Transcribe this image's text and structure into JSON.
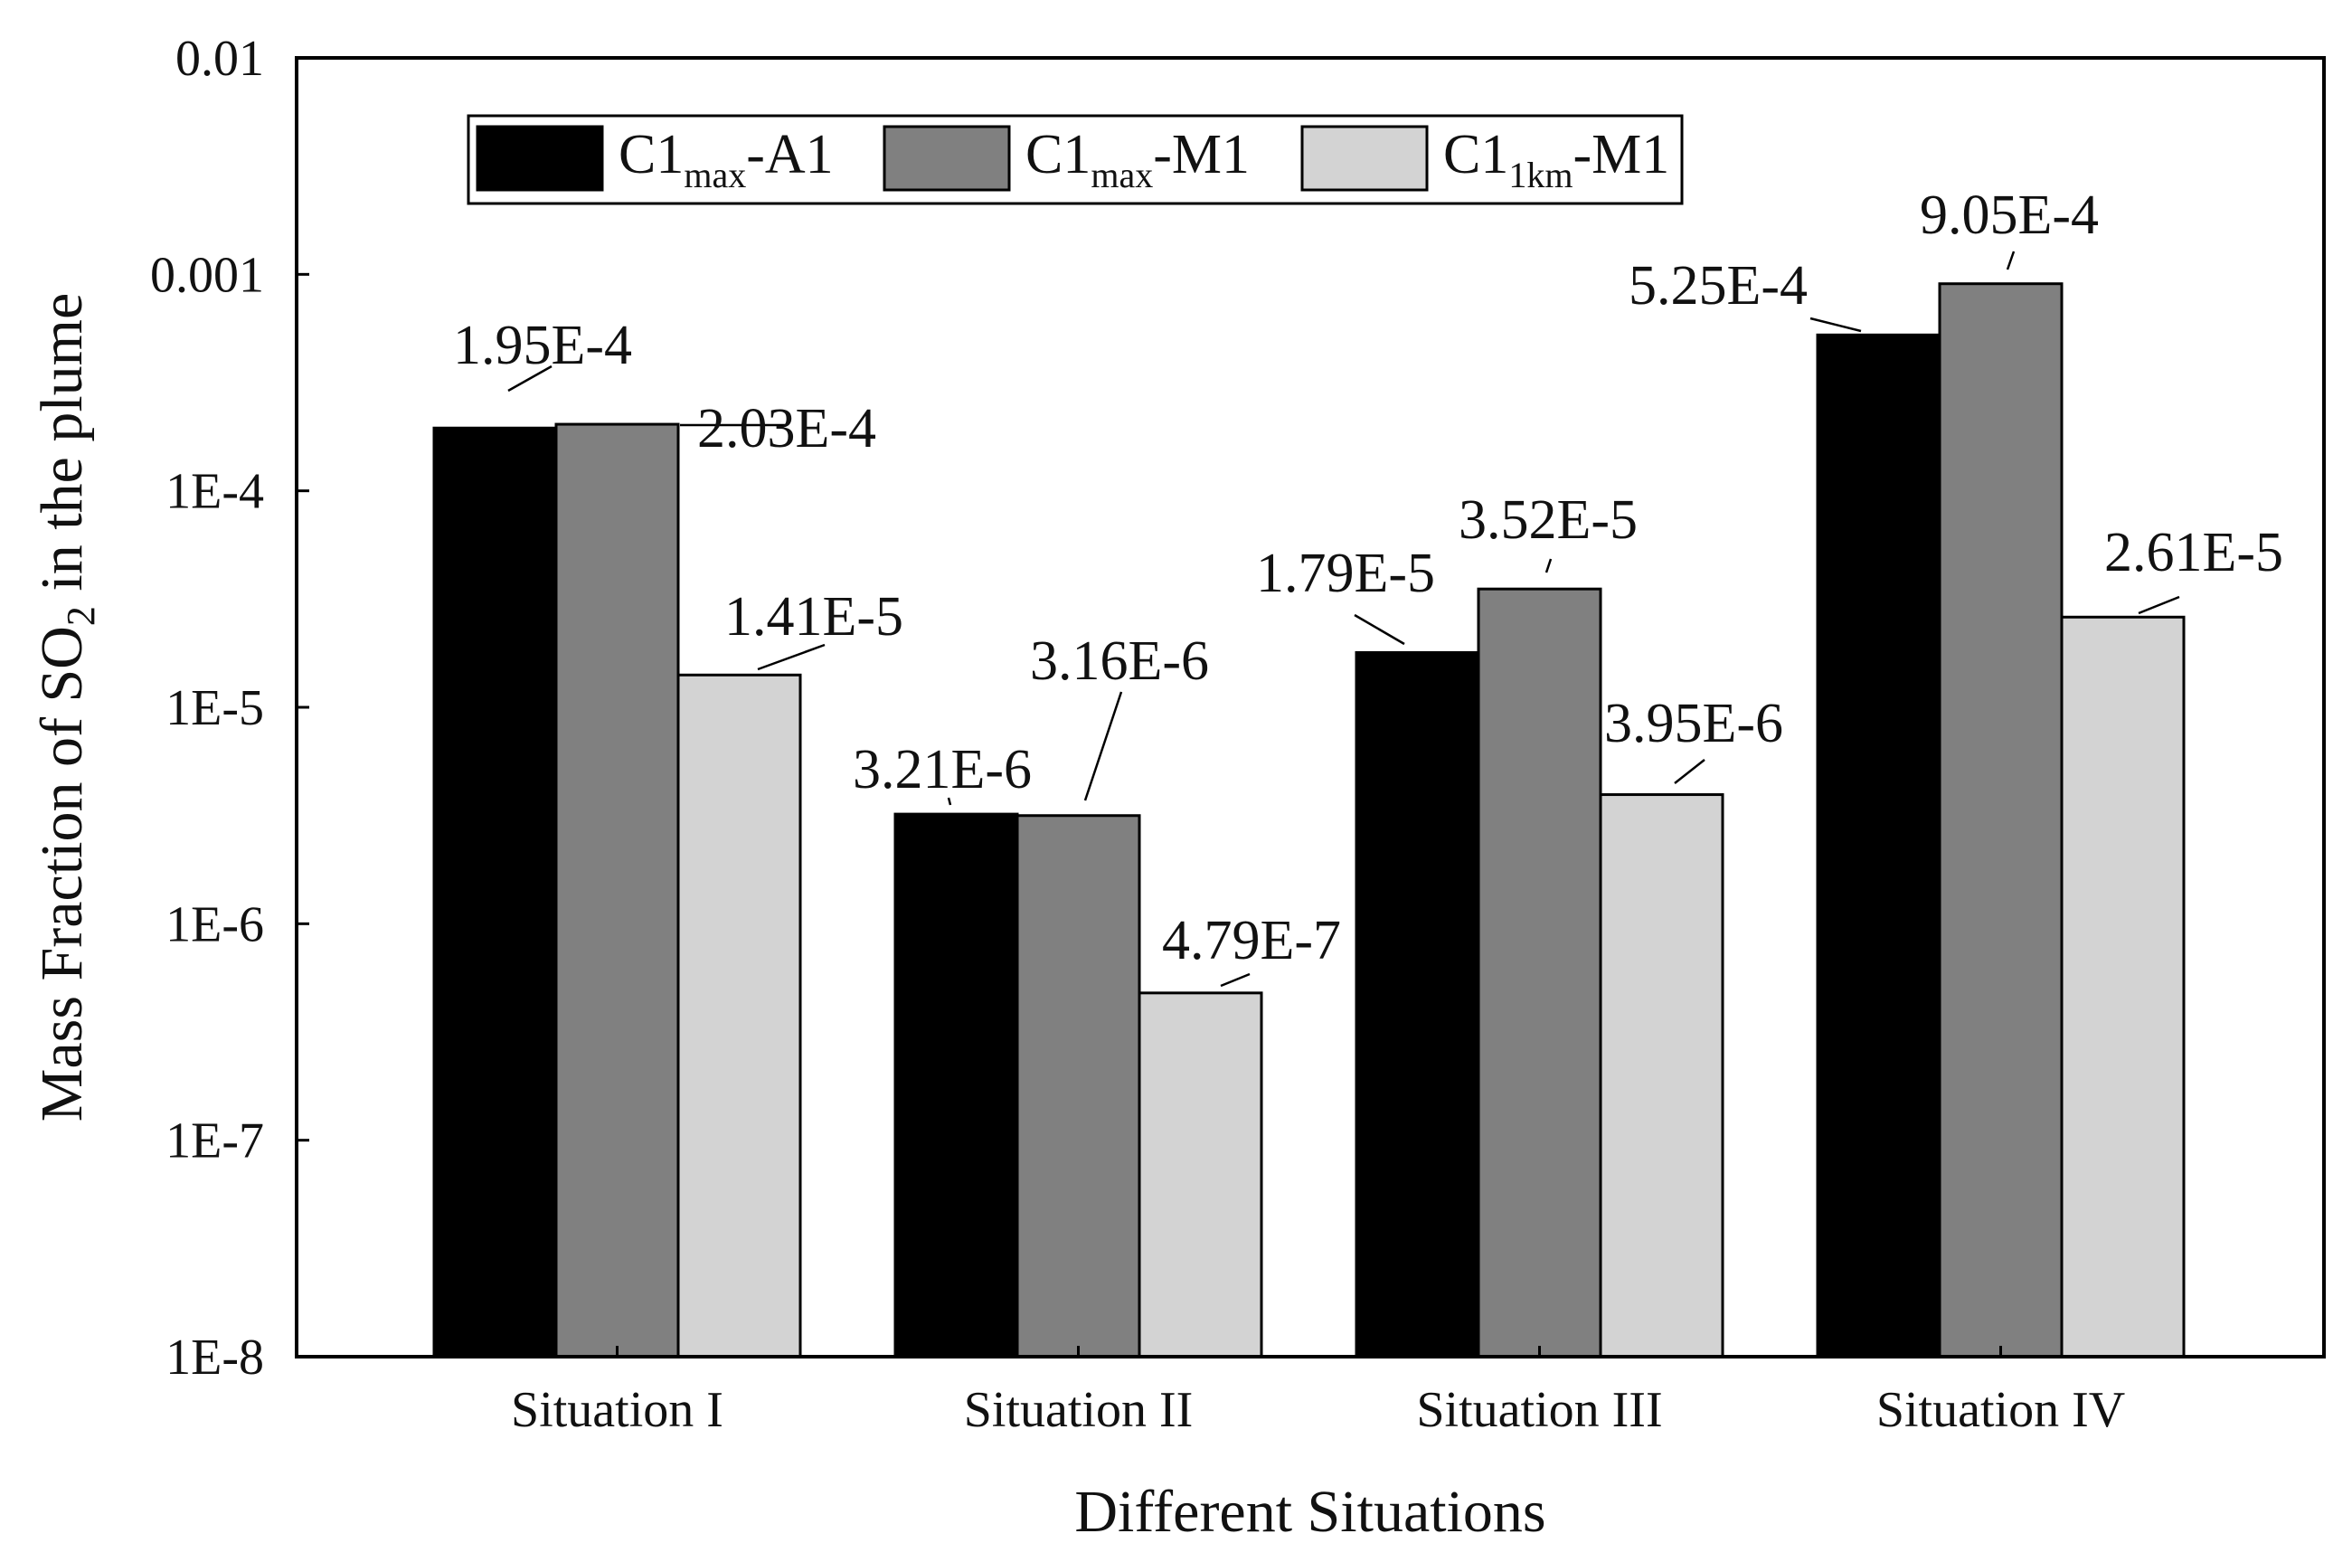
{
  "chart_data": {
    "type": "bar",
    "scale": "log",
    "xlabel": "Different Situations",
    "ylabel_parts": {
      "pre": "Mass Fraction of SO",
      "sub": "2",
      "post": " in the plume"
    },
    "ylim": [
      1e-08,
      0.01
    ],
    "y_ticks": [
      {
        "value": 1e-08,
        "label": "1E-8"
      },
      {
        "value": 1e-07,
        "label": "1E-7"
      },
      {
        "value": 1e-06,
        "label": "1E-6"
      },
      {
        "value": 1e-05,
        "label": "1E-5"
      },
      {
        "value": 0.0001,
        "label": "1E-4"
      },
      {
        "value": 0.001,
        "label": "0.001"
      },
      {
        "value": 0.01,
        "label": "0.01"
      }
    ],
    "categories": [
      "Situation I",
      "Situation II",
      "Situation III",
      "Situation IV"
    ],
    "series": [
      {
        "name": "C1max-A1",
        "legend": {
          "base": "C1",
          "sub": "max",
          "suffix": "-A1"
        },
        "color": "#000000",
        "values": [
          0.000195,
          3.21e-06,
          1.79e-05,
          0.000525
        ],
        "labels": [
          "1.95E-4",
          "3.21E-6",
          "1.79E-5",
          "5.25E-4"
        ]
      },
      {
        "name": "C1max-M1",
        "legend": {
          "base": "C1",
          "sub": "max",
          "suffix": "-M1"
        },
        "color": "#808080",
        "values": [
          0.000203,
          3.16e-06,
          3.52e-05,
          0.000905
        ],
        "labels": [
          "2.03E-4",
          "3.16E-6",
          "3.52E-5",
          "9.05E-4"
        ]
      },
      {
        "name": "C11km-M1",
        "legend": {
          "base": "C1",
          "sub": "1km",
          "suffix": "-M1"
        },
        "color": "#d3d3d3",
        "values": [
          1.41e-05,
          4.79e-07,
          3.95e-06,
          2.61e-05
        ],
        "labels": [
          "1.41E-5",
          "4.79E-7",
          "3.95E-6",
          "2.61E-5"
        ]
      }
    ],
    "legend_position": "top-left",
    "grid": false
  }
}
